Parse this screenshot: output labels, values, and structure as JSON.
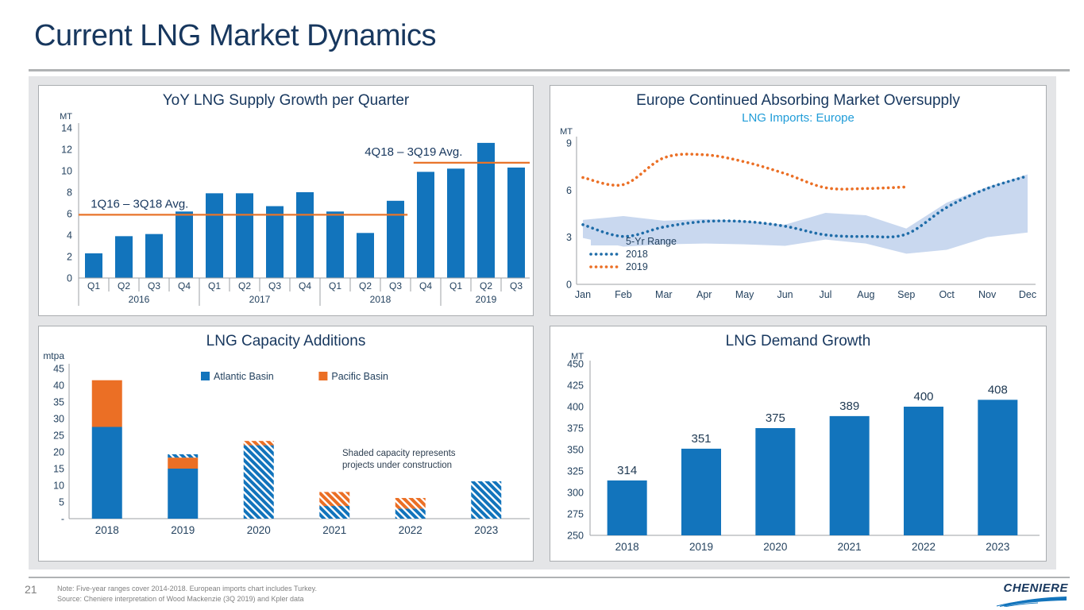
{
  "slide": {
    "title": "Current LNG Market Dynamics",
    "page_number": "21",
    "footnote_line1": "Note: Five-year ranges cover 2014-2018. European imports chart includes Turkey.",
    "footnote_line2": "Source: Cheniere interpretation of Wood Mackenzie (3Q 2019) and Kpler data",
    "logo_text": "CHENIERE"
  },
  "colors": {
    "navy": "#17375E",
    "bar_blue": "#1274BC",
    "line_blue_2018": "#1E6CA8",
    "orange": "#EB6F25",
    "avg_line_orange": "#E8742A",
    "subtitle_blue": "#1F9CD8",
    "band_blue": "#C9D8EF",
    "axis_line": "#9EA2A6",
    "tick_text": "#24425F"
  },
  "chart_data": [
    {
      "id": "supply_growth",
      "type": "bar",
      "title": "YoY LNG Supply Growth per Quarter",
      "unit": "MT",
      "ylim": [
        0,
        14
      ],
      "yticks": [
        0,
        2,
        4,
        6,
        8,
        10,
        12,
        14
      ],
      "categories": [
        "Q1",
        "Q2",
        "Q3",
        "Q4",
        "Q1",
        "Q2",
        "Q3",
        "Q4",
        "Q1",
        "Q2",
        "Q3",
        "Q4",
        "Q1",
        "Q2",
        "Q3"
      ],
      "year_groups": [
        {
          "label": "2016",
          "span": 4
        },
        {
          "label": "2017",
          "span": 4
        },
        {
          "label": "2018",
          "span": 4
        },
        {
          "label": "2019",
          "span": 3
        }
      ],
      "values": [
        2.3,
        3.9,
        4.1,
        6.2,
        7.9,
        7.9,
        6.7,
        8.0,
        6.2,
        4.2,
        7.2,
        9.9,
        10.2,
        12.6,
        10.3
      ],
      "avg_lines": [
        {
          "label": "1Q16 – 3Q18 Avg.",
          "value": 5.9,
          "from_bar": 0,
          "to_bar": 10.9,
          "label_x_bar": 0.4,
          "label_anchor": "start"
        },
        {
          "label": "4Q18 – 3Q19 Avg.",
          "value": 10.75,
          "from_bar": 11.1,
          "to_bar": 15,
          "label_x_bar": 11.1,
          "label_anchor": "middle"
        }
      ]
    },
    {
      "id": "europe_imports",
      "type": "line",
      "title": "Europe Continued Absorbing Market Oversupply",
      "subtitle": "LNG Imports: Europe",
      "unit": "MT",
      "ylim": [
        0,
        9
      ],
      "yticks": [
        0,
        3,
        6,
        9
      ],
      "x": [
        "Jan",
        "Feb",
        "Mar",
        "Apr",
        "May",
        "Jun",
        "Jul",
        "Aug",
        "Sep",
        "Oct",
        "Nov",
        "Dec"
      ],
      "band": {
        "name": "5-Yr Range",
        "upper": [
          4.1,
          4.35,
          4.05,
          4.15,
          4.05,
          3.8,
          4.55,
          4.4,
          3.55,
          5.2,
          6.2,
          7.0
        ],
        "lower": [
          2.95,
          2.4,
          2.55,
          2.6,
          2.55,
          2.45,
          2.85,
          2.6,
          1.95,
          2.2,
          3.0,
          3.3
        ]
      },
      "series": [
        {
          "name": "2018",
          "values": [
            3.8,
            3.05,
            3.65,
            4.0,
            4.0,
            3.7,
            3.15,
            3.05,
            3.2,
            4.9,
            6.1,
            6.9
          ]
        },
        {
          "name": "2019",
          "values": [
            6.8,
            6.35,
            8.05,
            8.25,
            7.8,
            7.05,
            6.15,
            6.1,
            6.2,
            null,
            null,
            null
          ]
        }
      ],
      "legend_order": [
        "5-Yr Range",
        "2018",
        "2019"
      ]
    },
    {
      "id": "capacity_additions",
      "type": "stacked_bar",
      "title": "LNG Capacity Additions",
      "unit": "mtpa",
      "ylim": [
        0,
        45
      ],
      "yticks": [
        0,
        5,
        10,
        15,
        20,
        25,
        30,
        35,
        40,
        45
      ],
      "zero_tick_label": "-",
      "categories": [
        "2018",
        "2019",
        "2020",
        "2021",
        "2022",
        "2023"
      ],
      "legend": [
        {
          "label": "Atlantic Basin",
          "color_key": "bar_blue"
        },
        {
          "label": "Pacific Basin",
          "color_key": "orange"
        }
      ],
      "annotation_lines": [
        "Shaded capacity represents",
        "projects under construction"
      ],
      "bars": [
        {
          "year": "2018",
          "segments": [
            {
              "basin": "atlantic",
              "value": 27.5,
              "hatched": false
            },
            {
              "basin": "pacific",
              "value": 14.0,
              "hatched": false
            }
          ]
        },
        {
          "year": "2019",
          "segments": [
            {
              "basin": "atlantic",
              "value": 15.0,
              "hatched": false
            },
            {
              "basin": "pacific",
              "value": 3.3,
              "hatched": false
            },
            {
              "basin": "atlantic",
              "value": 1.0,
              "hatched": true
            }
          ]
        },
        {
          "year": "2020",
          "segments": [
            {
              "basin": "atlantic",
              "value": 22.0,
              "hatched": true
            },
            {
              "basin": "pacific",
              "value": 1.3,
              "hatched": true
            }
          ]
        },
        {
          "year": "2021",
          "segments": [
            {
              "basin": "atlantic",
              "value": 3.8,
              "hatched": true
            },
            {
              "basin": "pacific",
              "value": 4.2,
              "hatched": true
            }
          ]
        },
        {
          "year": "2022",
          "segments": [
            {
              "basin": "atlantic",
              "value": 3.0,
              "hatched": true
            },
            {
              "basin": "pacific",
              "value": 3.2,
              "hatched": true
            }
          ]
        },
        {
          "year": "2023",
          "segments": [
            {
              "basin": "atlantic",
              "value": 11.2,
              "hatched": true
            }
          ]
        }
      ]
    },
    {
      "id": "demand_growth",
      "type": "bar",
      "title": "LNG Demand Growth",
      "unit": "MT",
      "ylim": [
        250,
        450
      ],
      "yticks": [
        250,
        275,
        300,
        325,
        350,
        375,
        400,
        425,
        450
      ],
      "categories": [
        "2018",
        "2019",
        "2020",
        "2021",
        "2022",
        "2023"
      ],
      "values": [
        314,
        351,
        375,
        389,
        400,
        408
      ],
      "data_labels": true
    }
  ]
}
